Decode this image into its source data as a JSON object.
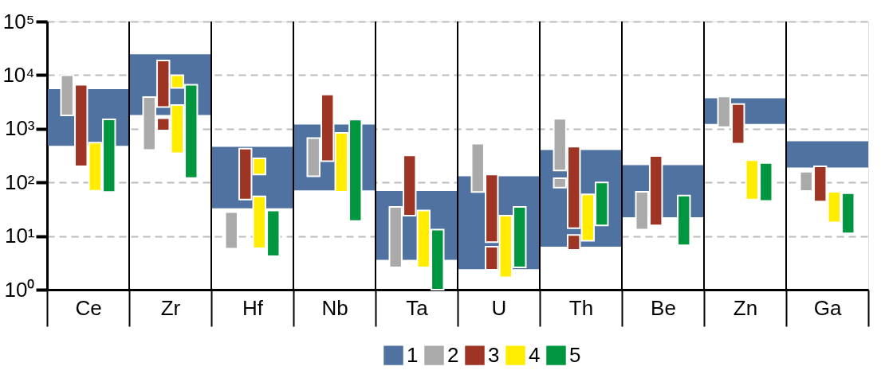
{
  "chart_data": {
    "type": "bar",
    "categories": [
      "Ce",
      "Zr",
      "Hf",
      "Nb",
      "Ta",
      "U",
      "Th",
      "Be",
      "Zn",
      "Ga"
    ],
    "log": true,
    "grid": "y",
    "legend": "bottom",
    "ylim": [
      1,
      100000
    ],
    "yticks": [
      {
        "value": 1,
        "label": "10⁰"
      },
      {
        "value": 10,
        "label": "10¹"
      },
      {
        "value": 100,
        "label": "10²"
      },
      {
        "value": 1000,
        "label": "10³"
      },
      {
        "value": 10000,
        "label": "10⁴"
      },
      {
        "value": 100000,
        "label": "10⁵"
      }
    ],
    "series": [
      {
        "name": "1",
        "color": "#4f72a0",
        "base": [
          480,
          1800,
          33,
          71,
          3.6,
          2.4,
          6.3,
          22.4,
          1230,
          190
        ],
        "values": [
          5020,
          22700,
          427,
          1129,
          65.4,
          127.6,
          393.7,
          187.6,
          2470,
          395
        ]
      },
      {
        "name": "2",
        "color": "#aaaaaa",
        "base": [
          1770,
          400,
          5.8,
          130,
          2.6,
          66,
          166,
          13.2,
          1070,
          69
        ],
        "values": [
          8230,
          3500,
          22.2,
          540,
          32.4,
          464,
          1374,
          53.8,
          2930,
          89
        ]
      },
      {
        "color": "#aaaaaa",
        "base": [
          null,
          null,
          null,
          null,
          null,
          null,
          80,
          null,
          null,
          null
        ],
        "values": [
          null,
          null,
          null,
          null,
          null,
          null,
          39,
          null,
          null,
          null
        ]
      },
      {
        "name": "3",
        "color": "#9e3424",
        "base": [
          200,
          2550,
          48,
          250,
          24,
          7.7,
          14,
          15.8,
          530,
          44
        ],
        "values": [
          6400,
          16150,
          377,
          4100,
          296,
          132.3,
          451,
          294.2,
          2350,
          156
        ]
      },
      {
        "color": "#9e3424",
        "base": [
          null,
          930,
          null,
          null,
          null,
          2.35,
          5.5,
          null,
          null,
          null
        ],
        "values": [
          null,
          650,
          null,
          null,
          null,
          3.95,
          5,
          null,
          null,
          null
        ]
      },
      {
        "name": "4",
        "color": "#ffec00",
        "base": [
          70,
          350,
          5.9,
          67,
          2.6,
          1.7,
          8.2,
          null,
          48,
          18
        ],
        "values": [
          480,
          2420,
          49.1,
          773,
          27.4,
          22.3,
          51.8,
          null,
          212,
          49
        ]
      },
      {
        "color": "#ffec00",
        "base": [
          null,
          5750,
          140,
          null,
          null,
          null,
          null,
          null,
          null,
          null
        ],
        "values": [
          null,
          4250,
          140,
          null,
          null,
          null,
          null,
          null,
          null,
          null
        ]
      },
      {
        "name": "5",
        "color": "#009640",
        "base": [
          66,
          120,
          4.2,
          19,
          1,
          2.6,
          15.8,
          6.7,
          45,
          11.2
        ],
        "values": [
          1434,
          6480,
          25.8,
          1461,
          12.2,
          32.4,
          84.2,
          50.3,
          185,
          51.8
        ]
      }
    ]
  }
}
